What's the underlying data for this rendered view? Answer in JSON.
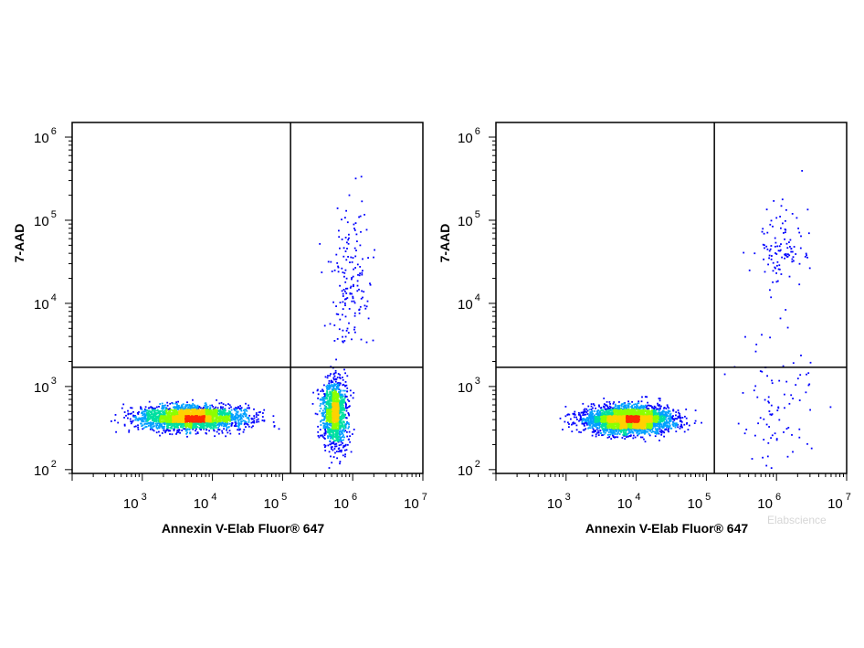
{
  "chart_data": [
    {
      "type": "scatter",
      "xlabel": "Annexin V-Elab Fluor® 647",
      "ylabel": "7-AAD",
      "x_scale": "log",
      "y_scale": "log",
      "xlim": [
        100,
        10000000
      ],
      "ylim": [
        90,
        1500000
      ],
      "x_ticks": [
        {
          "base": "10",
          "exp": "3"
        },
        {
          "base": "10",
          "exp": "4"
        },
        {
          "base": "10",
          "exp": "5"
        },
        {
          "base": "10",
          "exp": "6"
        },
        {
          "base": "10",
          "exp": "7"
        }
      ],
      "y_ticks": [
        {
          "base": "10",
          "exp": "2"
        },
        {
          "base": "10",
          "exp": "3"
        },
        {
          "base": "10",
          "exp": "4"
        },
        {
          "base": "10",
          "exp": "5"
        },
        {
          "base": "10",
          "exp": "6"
        }
      ],
      "gate": {
        "x": 130000,
        "y": 1700
      },
      "grid": false,
      "populations": [
        {
          "cx": 5000,
          "cy": 420,
          "sx": 0.38,
          "sy": 0.07,
          "n": 2600,
          "max_density": "red"
        },
        {
          "cx": 550000,
          "cy": 480,
          "sx": 0.09,
          "sy": 0.2,
          "n": 1300,
          "max_density": "red"
        },
        {
          "cx": 900000,
          "cy": 20000,
          "sx": 0.15,
          "sy": 0.45,
          "n": 160,
          "max_density": "blue"
        }
      ]
    },
    {
      "type": "scatter",
      "xlabel": "Annexin V-Elab Fluor® 647",
      "ylabel": "7-AAD",
      "x_scale": "log",
      "y_scale": "log",
      "xlim": [
        100,
        10000000
      ],
      "ylim": [
        90,
        1500000
      ],
      "x_ticks": [
        {
          "base": "10",
          "exp": "3"
        },
        {
          "base": "10",
          "exp": "4"
        },
        {
          "base": "10",
          "exp": "5"
        },
        {
          "base": "10",
          "exp": "6"
        },
        {
          "base": "10",
          "exp": "7"
        }
      ],
      "y_ticks": [
        {
          "base": "10",
          "exp": "2"
        },
        {
          "base": "10",
          "exp": "3"
        },
        {
          "base": "10",
          "exp": "4"
        },
        {
          "base": "10",
          "exp": "5"
        },
        {
          "base": "10",
          "exp": "6"
        }
      ],
      "gate": {
        "x": 130000,
        "y": 1700
      },
      "grid": false,
      "populations": [
        {
          "cx": 8000,
          "cy": 400,
          "sx": 0.3,
          "sy": 0.08,
          "n": 3200,
          "max_density": "red"
        },
        {
          "cx": 1200000,
          "cy": 45000,
          "sx": 0.18,
          "sy": 0.25,
          "n": 110,
          "max_density": "blue"
        },
        {
          "cx": 1000000,
          "cy": 800,
          "sx": 0.3,
          "sy": 0.45,
          "n": 90,
          "max_density": "blue"
        }
      ]
    }
  ],
  "density_colors": [
    "#0000ff",
    "#00a0ff",
    "#00e0a0",
    "#8cff00",
    "#ffd200",
    "#ff2a00"
  ],
  "watermark": "Elabscience"
}
